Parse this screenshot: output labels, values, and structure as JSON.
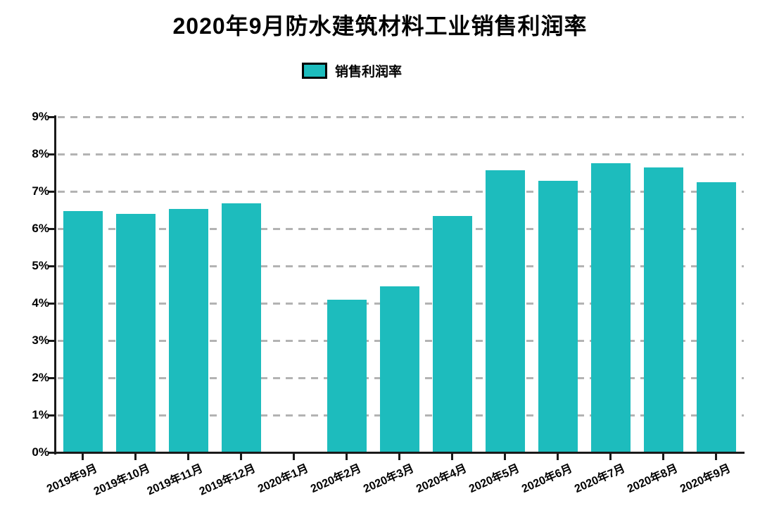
{
  "title": "2020年9月防水建筑材料工业销售利润率",
  "legend": {
    "label": "销售利润率",
    "swatch_color": "#1dbcbd"
  },
  "colors": {
    "bar": "#1dbcbd",
    "axis": "#1a1a1a",
    "gridline": "#b3b3b3",
    "text": "#000000",
    "background": "#ffffff"
  },
  "chart_data": {
    "type": "bar",
    "title": "2020年9月防水建筑材料工业销售利润率",
    "categories": [
      "2019年9月",
      "2019年10月",
      "2019年11月",
      "2019年12月",
      "2020年1月",
      "2020年2月",
      "2020年3月",
      "2020年4月",
      "2020年5月",
      "2020年6月",
      "2020年7月",
      "2020年8月",
      "2020年9月"
    ],
    "series": [
      {
        "name": "销售利润率",
        "values": [
          6.47,
          6.4,
          6.52,
          6.68,
          null,
          4.1,
          4.45,
          6.34,
          7.57,
          7.29,
          7.76,
          7.64,
          7.24
        ]
      }
    ],
    "xlabel": "",
    "ylabel": "",
    "ylim": [
      0,
      9
    ],
    "y_tick_step": 1,
    "y_tick_labels": [
      "0%",
      "1%",
      "2%",
      "3%",
      "4%",
      "5%",
      "6%",
      "7%",
      "8%",
      "9%"
    ],
    "grid": "horizontal-dashed",
    "legend_position": "top-center",
    "x_label_rotation_deg": -24,
    "missing_categories": [
      "2020年1月"
    ]
  }
}
